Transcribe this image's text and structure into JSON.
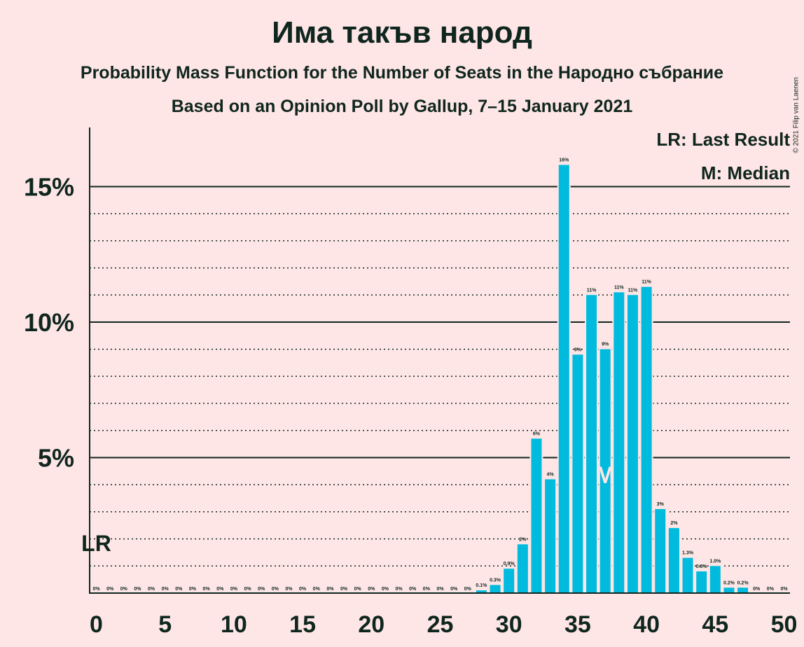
{
  "header": {
    "title": "Има такъв народ",
    "subtitle": "Probability Mass Function for the Number of Seats in the Народно събрание",
    "source": "Based on an Opinion Poll by Gallup, 7–15 January 2021",
    "copyright": "© 2021 Filip van Laenen"
  },
  "legend": {
    "last_result": "LR: Last Result",
    "median": "M: Median"
  },
  "markers": {
    "last_result_label": "LR",
    "last_result_seat": 0,
    "median_label": "M",
    "median_seat": 37
  },
  "colors": {
    "bar": "#00bbdd",
    "background": "#ffe6e6",
    "text": "#0f261f",
    "median_marker": "#ffe6e6"
  },
  "chart_data": {
    "type": "bar",
    "xlabel": "",
    "ylabel": "",
    "x": [
      0,
      1,
      2,
      3,
      4,
      5,
      6,
      7,
      8,
      9,
      10,
      11,
      12,
      13,
      14,
      15,
      16,
      17,
      18,
      19,
      20,
      21,
      22,
      23,
      24,
      25,
      26,
      27,
      28,
      29,
      30,
      31,
      32,
      33,
      34,
      35,
      36,
      37,
      38,
      39,
      40,
      41,
      42,
      43,
      44,
      45,
      46,
      47,
      48,
      49,
      50
    ],
    "values": [
      0,
      0,
      0,
      0,
      0,
      0,
      0,
      0,
      0,
      0,
      0,
      0,
      0,
      0,
      0,
      0,
      0,
      0,
      0,
      0,
      0,
      0,
      0,
      0,
      0,
      0,
      0,
      0,
      0.1,
      0.3,
      0.9,
      1.8,
      5.7,
      4.2,
      15.8,
      8.8,
      11.0,
      9.0,
      11.1,
      11.0,
      11.3,
      3.1,
      2.4,
      1.3,
      0.8,
      1.0,
      0.2,
      0.2,
      0,
      0,
      0
    ],
    "value_labels": [
      "0%",
      "0%",
      "0%",
      "0%",
      "0%",
      "0%",
      "0%",
      "0%",
      "0%",
      "0%",
      "0%",
      "0%",
      "0%",
      "0%",
      "0%",
      "0%",
      "0%",
      "0%",
      "0%",
      "0%",
      "0%",
      "0%",
      "0%",
      "0%",
      "0%",
      "0%",
      "0%",
      "0%",
      "0.1%",
      "0.3%",
      "0.9%",
      "2%",
      "6%",
      "4%",
      "16%",
      "9%",
      "11%",
      "9%",
      "11%",
      "11%",
      "11%",
      "3%",
      "2%",
      "1.3%",
      "0.8%",
      "1.0%",
      "0.2%",
      "0.2%",
      "0%",
      "0%",
      "0%"
    ],
    "xlim": [
      0,
      50
    ],
    "ylim": [
      0,
      16.5
    ],
    "x_ticks": [
      0,
      5,
      10,
      15,
      20,
      25,
      30,
      35,
      40,
      45,
      50
    ],
    "y_ticks": [
      5,
      10,
      15
    ],
    "y_tick_labels": [
      "5%",
      "10%",
      "15%"
    ],
    "minor_gridlines": [
      1,
      2,
      3,
      4,
      6,
      7,
      8,
      9,
      11,
      12,
      13,
      14
    ],
    "grid": true,
    "legend_placement": "top-right"
  }
}
